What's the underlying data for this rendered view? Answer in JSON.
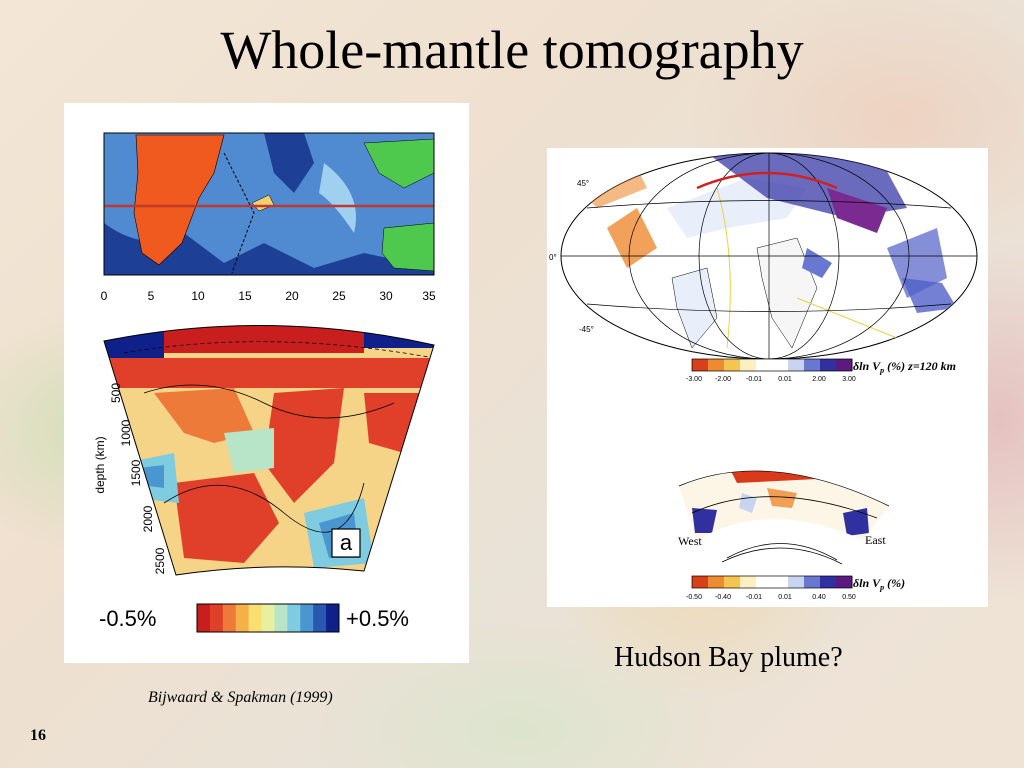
{
  "title": "Whole-mantle tomography",
  "left_figure": {
    "map_x_ticks": [
      "0",
      "5",
      "10",
      "15",
      "20",
      "25",
      "30",
      "35"
    ],
    "depth_axis_label": "depth (km)",
    "depth_ticks": [
      "500",
      "1000",
      "1500",
      "2000",
      "2500"
    ],
    "panel_letter": "a",
    "scale_min": "-0.5%",
    "scale_max": "+0.5%",
    "scale_colors": [
      "#c81e1e",
      "#e0402a",
      "#ee7a3a",
      "#f5b04a",
      "#f8df70",
      "#e8f0a0",
      "#b8e4c8",
      "#7fcbe0",
      "#4a96d0",
      "#2858b0",
      "#10208a"
    ]
  },
  "right_figure": {
    "lat_labels": [
      "45°",
      "0°",
      "-45°"
    ],
    "map_scale_label": "δln V",
    "map_scale_sub": "p",
    "map_scale_suffix": " (%) z=120 km",
    "map_scale_ticks": [
      "-3.00",
      "-2.00",
      "-0.01",
      "0.01",
      "2.00",
      "3.00"
    ],
    "section_west": "West",
    "section_east": "East",
    "section_scale_label": "δln V",
    "section_scale_sub": "p",
    "section_scale_suffix": " (%)",
    "section_scale_ticks": [
      "-0.50",
      "-0.40",
      "-0.01",
      "0.01",
      "0.40",
      "0.50"
    ],
    "scale_colors": [
      "#d8401a",
      "#ee8a30",
      "#f6c450",
      "#fdf0c0",
      "#ffffff",
      "#ffffff",
      "#c8d4f0",
      "#6878d0",
      "#3030a0",
      "#5a1a80"
    ]
  },
  "caption_left": "Bijwaard & Spakman (1999)",
  "caption_right": "Hudson Bay plume?",
  "slide_number": "16"
}
